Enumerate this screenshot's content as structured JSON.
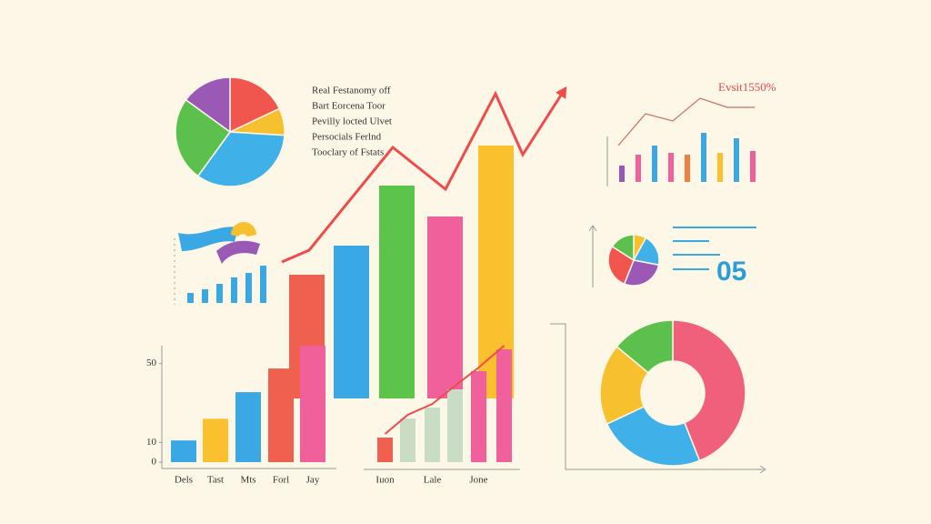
{
  "chart_data": [
    {
      "type": "pie",
      "values": [
        18,
        8,
        34,
        25,
        15
      ],
      "colors": [
        "#f0564e",
        "#f7c02e",
        "#3fb0e8",
        "#5cc04c",
        "#9b59b6"
      ]
    },
    {
      "type": "bar",
      "values": [
        136,
        168,
        234,
        200,
        278
      ],
      "colors": [
        "#f0604f",
        "#3aa8e4",
        "#5cc44a",
        "#f0609a",
        "#fbc02d"
      ],
      "ylim": [
        0,
        350
      ],
      "annotations": [
        "Real Festanomy off",
        "Bart Eorcena Toor",
        "Pevilly locted Ulvet",
        "Persocials Ferlnd",
        "Tooclary of Fstats"
      ]
    },
    {
      "type": "line",
      "x": [
        0,
        30,
        122,
        180,
        235,
        265,
        310
      ],
      "values": [
        150,
        163,
        276,
        230,
        335,
        268,
        338
      ],
      "color": "#ef4b4b",
      "xlim": [
        0,
        310
      ],
      "ylim": [
        0,
        350
      ]
    },
    {
      "type": "bar",
      "categories": [
        "Dels",
        "Tast",
        "Mts",
        "Forl",
        "Jay"
      ],
      "values": [
        11,
        22,
        35.5,
        47.5,
        59
      ],
      "colors": [
        "#3aa8e4",
        "#fbc02d",
        "#3aa8e4",
        "#f0604f",
        "#f0609a"
      ],
      "ylim": [
        0,
        60
      ],
      "yticks": [
        0,
        10,
        50
      ]
    },
    {
      "type": "bar",
      "categories": [
        "Iuon",
        null,
        "Lale",
        null,
        "Jone",
        null
      ],
      "values": [
        27,
        48,
        60,
        80,
        100,
        124
      ],
      "colors": [
        "#f0604f",
        "#c9dcc6",
        "#c9dcc6",
        "#c9dcc6",
        "#f0609a",
        "#f0609a"
      ],
      "line_color": "#ef4b4b",
      "ylim": [
        0,
        130
      ]
    },
    {
      "type": "combo",
      "title": "Evsit1550%",
      "values": [
        18,
        30,
        40,
        32,
        30,
        54,
        32,
        48,
        34
      ],
      "colors": [
        "#9b59b6",
        "#f0609a",
        "#3aa8e4",
        "#f0609a",
        "#f08040",
        "#3aa8e4",
        "#fbc02d",
        "#3aa8e4",
        "#f0609a"
      ],
      "line_values": [
        40,
        75,
        67,
        92,
        82,
        82
      ],
      "line_color": "#c87060",
      "ylim": [
        0,
        100
      ]
    },
    {
      "type": "pie",
      "values": [
        8,
        20,
        28,
        28,
        16
      ],
      "colors": [
        "#f7c02e",
        "#3fb0e8",
        "#9b59b6",
        "#f0564e",
        "#5cc04c"
      ],
      "annotation": "05"
    },
    {
      "type": "donut",
      "values": [
        44,
        24,
        18,
        14
      ],
      "colors": [
        "#f0607a",
        "#3fb0e8",
        "#f7c02e",
        "#5cc04c"
      ]
    },
    {
      "type": "bar",
      "values": [
        11,
        15,
        21,
        28,
        33,
        41
      ],
      "colors": [
        "#3aa8e4",
        "#3aa8e4",
        "#3aa8e4",
        "#3aa8e4",
        "#3aa8e4",
        "#3aa8e4"
      ],
      "ylim": [
        0,
        45
      ]
    }
  ]
}
